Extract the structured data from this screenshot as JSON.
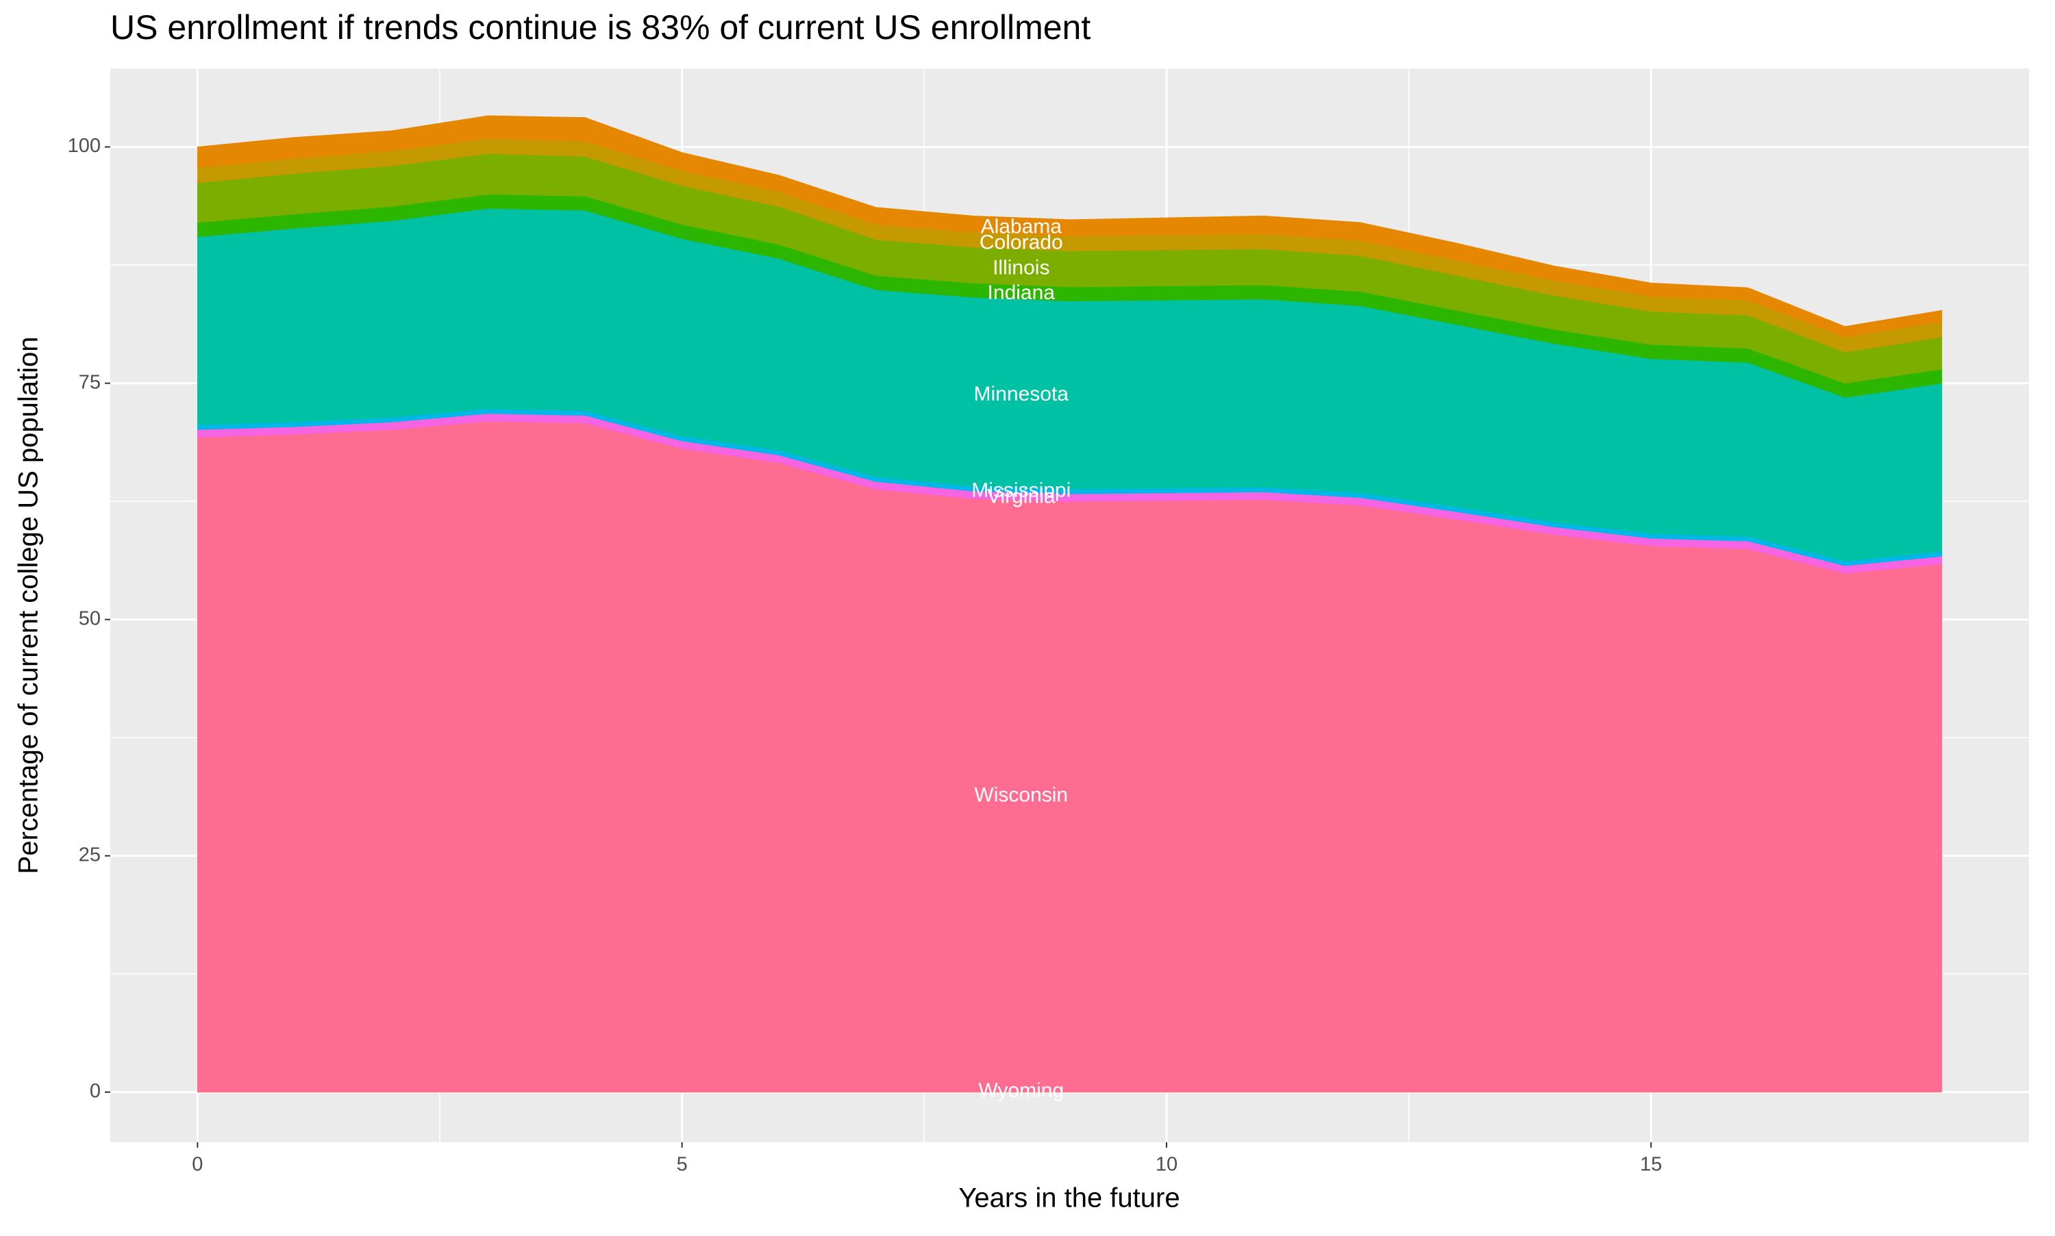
{
  "chart_data": {
    "type": "stacked-area",
    "title": "US enrollment if trends continue is 83% of current US enrollment",
    "x_label": "Years in the future",
    "y_label": "Percentage of current college US population",
    "x": [
      0,
      1,
      2,
      3,
      4,
      5,
      6,
      7,
      8,
      9,
      10,
      11,
      12,
      13,
      14,
      15,
      16,
      17,
      18
    ],
    "series": [
      {
        "name": "Wyoming",
        "color": "#fc717f",
        "values": [
          0.1,
          0.1,
          0.1,
          0.1,
          0.1,
          0.1,
          0.1,
          0.1,
          0.1,
          0.1,
          0.1,
          0.1,
          0.1,
          0.1,
          0.1,
          0.1,
          0.1,
          0.1,
          0.1
        ]
      },
      {
        "name": "Wisconsin",
        "color": "#ff6c91",
        "values": [
          69.2,
          69.5,
          70,
          70.9,
          70.7,
          68,
          66.5,
          63.7,
          62.7,
          62.4,
          62.5,
          62.6,
          62,
          60.5,
          58.9,
          57.7,
          57.4,
          54.8,
          55.8
        ]
      },
      {
        "name": "Virginia",
        "color": "#f564e3",
        "values": [
          0.8,
          0.8,
          0.8,
          0.8,
          0.8,
          0.8,
          0.8,
          0.8,
          0.8,
          0.8,
          0.8,
          0.8,
          0.8,
          0.8,
          0.8,
          0.8,
          0.8,
          0.8,
          0.8
        ]
      },
      {
        "name": "Mississippi",
        "color": "#00b8e7",
        "values": [
          0.5,
          0.5,
          0.5,
          0.5,
          0.5,
          0.5,
          0.5,
          0.5,
          0.5,
          0.5,
          0.5,
          0.5,
          0.5,
          0.5,
          0.5,
          0.5,
          0.5,
          0.5,
          0.5
        ]
      },
      {
        "name": "Minnesota",
        "color": "#00c1a3",
        "values": [
          19.9,
          20.5,
          20.8,
          21.2,
          21.2,
          20.9,
          20.3,
          19.8,
          20,
          19.9,
          19.9,
          19.9,
          19.8,
          19.3,
          18.9,
          18.5,
          18.4,
          17.3,
          17.8
        ]
      },
      {
        "name": "Indiana",
        "color": "#2db600",
        "values": [
          1.5,
          1.5,
          1.5,
          1.5,
          1.5,
          1.5,
          1.5,
          1.5,
          1.5,
          1.5,
          1.5,
          1.5,
          1.5,
          1.5,
          1.5,
          1.5,
          1.5,
          1.5,
          1.5
        ]
      },
      {
        "name": "Illinois",
        "color": "#7cae00",
        "values": [
          4.2,
          4.3,
          4.3,
          4.3,
          4.2,
          4.1,
          4,
          3.8,
          3.8,
          3.8,
          3.8,
          3.8,
          3.8,
          3.7,
          3.6,
          3.5,
          3.5,
          3.3,
          3.4
        ]
      },
      {
        "name": "Colorado",
        "color": "#c49a00",
        "values": [
          1.6,
          1.6,
          1.6,
          1.6,
          1.6,
          1.6,
          1.6,
          1.6,
          1.6,
          1.6,
          1.6,
          1.6,
          1.6,
          1.6,
          1.6,
          1.6,
          1.6,
          1.6,
          1.6
        ]
      },
      {
        "name": "Alabama",
        "color": "#e58700",
        "values": [
          2.2,
          2.2,
          2.1,
          2.4,
          2.5,
          1.9,
          1.7,
          1.8,
          1.7,
          1.7,
          1.8,
          1.9,
          1.9,
          1.8,
          1.5,
          1.4,
          1.3,
          1.1,
          1.2
        ]
      }
    ],
    "xlim": [
      -0.9,
      18.9
    ],
    "xticks": [
      0,
      5,
      10,
      15
    ],
    "ylim": [
      -5.3,
      108.3
    ],
    "yticks": [
      0,
      25,
      50,
      75,
      100
    ],
    "grid": true
  }
}
